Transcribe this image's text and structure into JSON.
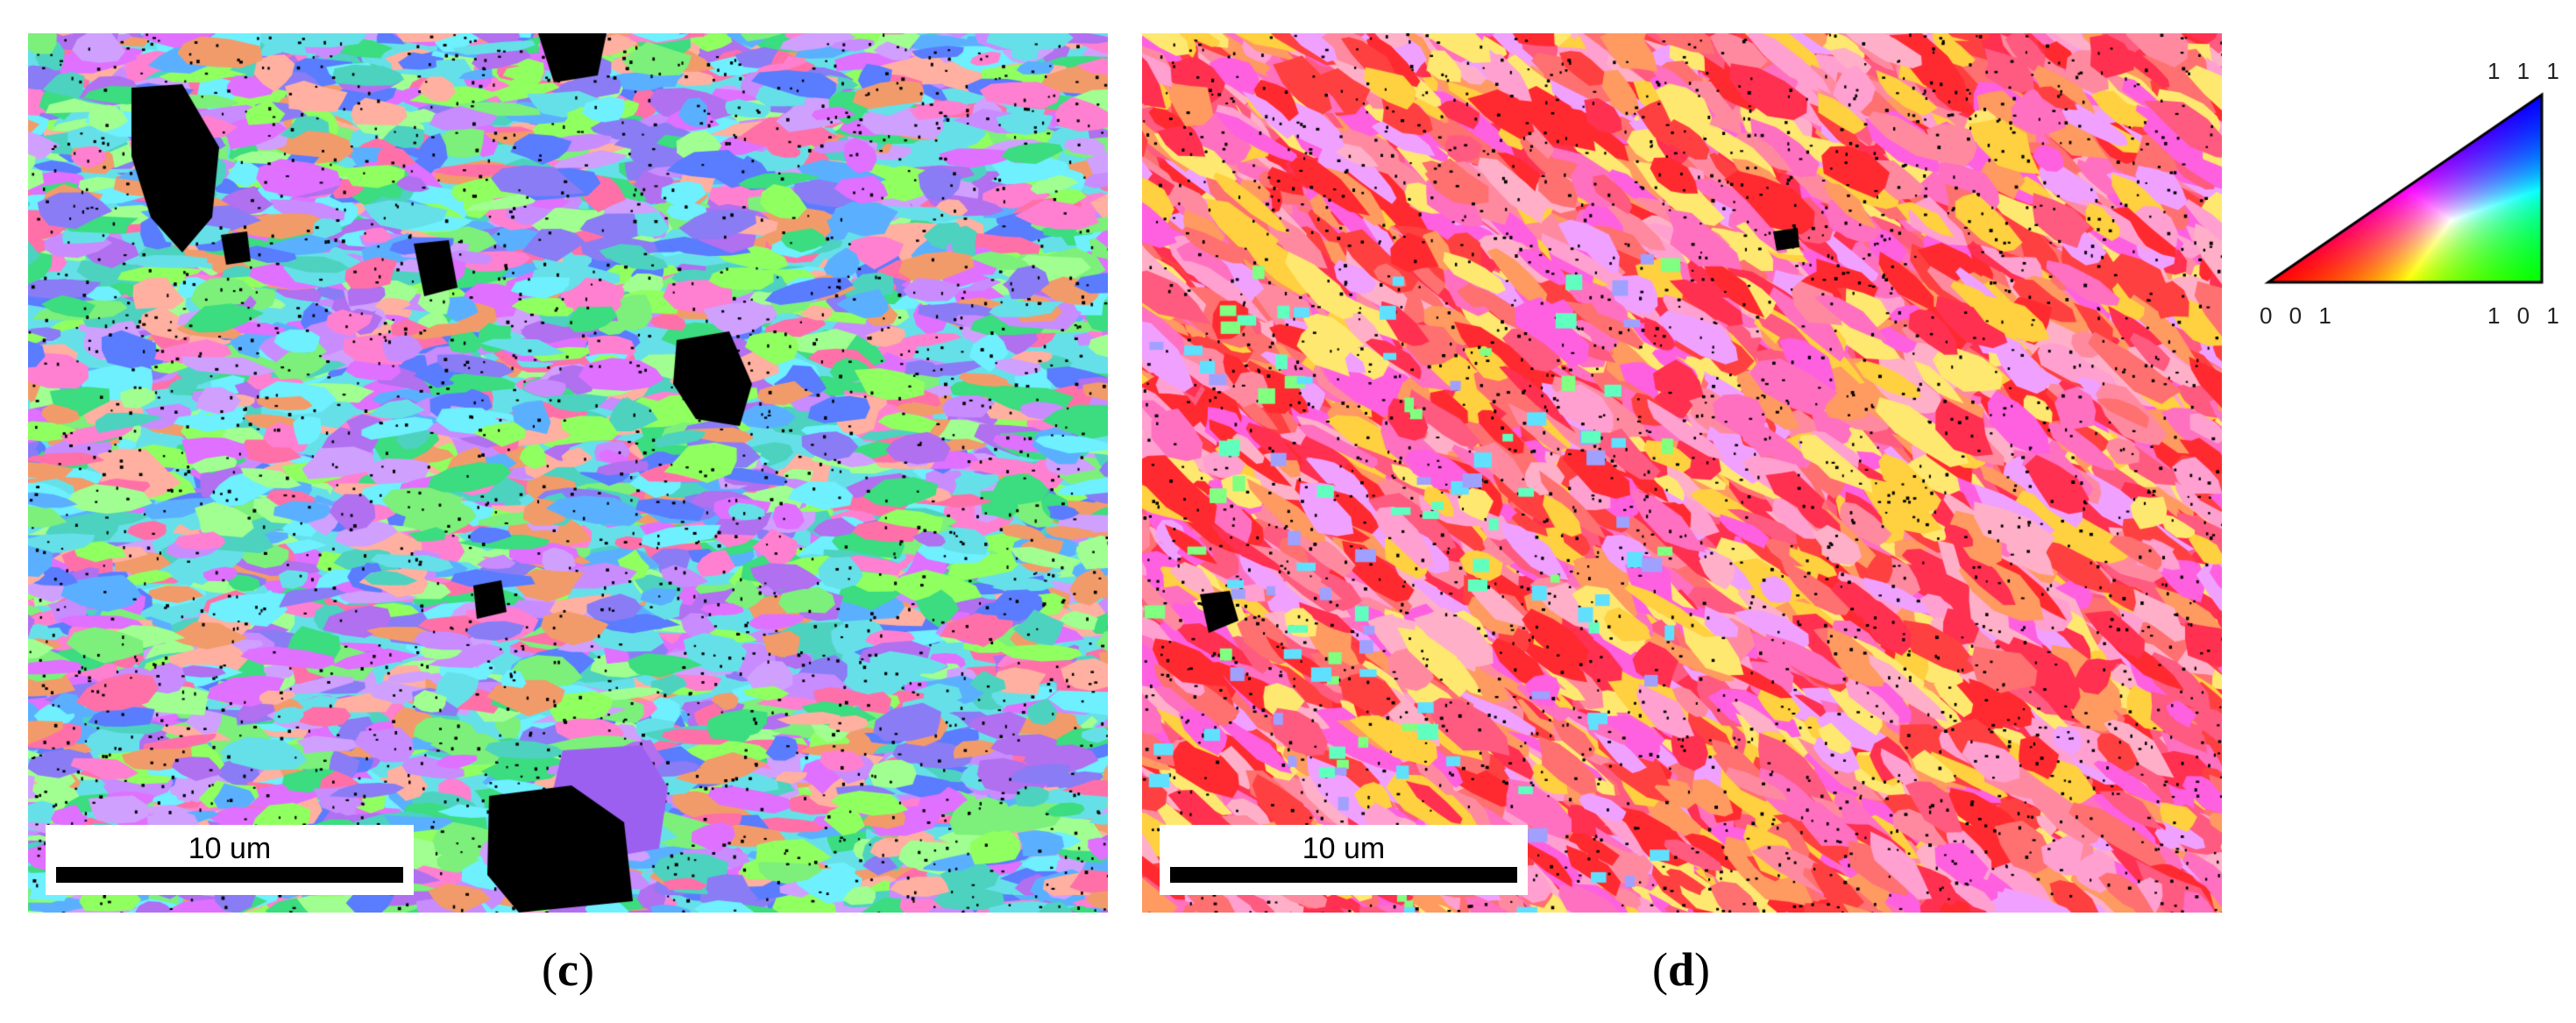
{
  "figure": {
    "panels": [
      {
        "id": "c",
        "caption_open": "(",
        "caption_letter": "c",
        "caption_close": ")",
        "scalebar_label": "10 um"
      },
      {
        "id": "d",
        "caption_open": "(",
        "caption_letter": "d",
        "caption_close": ")",
        "scalebar_label": "10 um"
      }
    ],
    "ipf_key": {
      "label_111": "1 1 1",
      "label_001": "0 0 1",
      "label_101": "1 0 1",
      "colors": {
        "001": "#ff0000",
        "101": "#00ff00",
        "111": "#0000ff"
      }
    }
  }
}
